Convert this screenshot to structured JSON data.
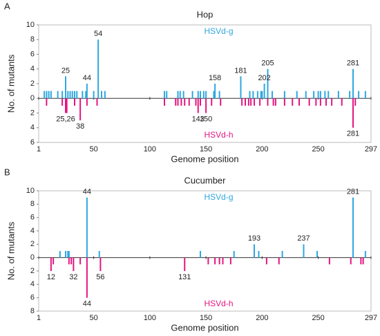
{
  "chart_data": [
    {
      "type": "bar",
      "panel": "A",
      "title": "Hop",
      "x_label": "Genome position",
      "y_label": "No. of mutants",
      "xlim": [
        1,
        297
      ],
      "xticks": [
        1,
        50,
        100,
        150,
        200,
        250,
        297
      ],
      "ylim": [
        -6,
        10
      ],
      "yticks": [
        {
          "value": -6,
          "label": "6"
        },
        {
          "value": -4,
          "label": "4"
        },
        {
          "value": -2,
          "label": "2"
        },
        0,
        2,
        4,
        6,
        8,
        10
      ],
      "series": [
        {
          "name": "HSVd-g",
          "color": "#2ea7e0",
          "x": [
            6,
            8,
            10,
            12,
            18,
            22,
            25,
            27,
            29,
            31,
            33,
            35,
            40,
            43,
            44,
            50,
            54,
            57,
            60,
            113,
            115,
            125,
            127,
            130,
            138,
            143,
            145,
            148,
            150,
            157,
            158,
            162,
            181,
            189,
            192,
            196,
            199,
            200,
            202,
            205,
            209,
            220,
            231,
            239,
            246,
            250,
            252,
            256,
            259,
            268,
            278,
            281,
            286,
            292
          ],
          "values": [
            1,
            1,
            1,
            1,
            1,
            1,
            3,
            1,
            1,
            1,
            1,
            1,
            1,
            1,
            2,
            1,
            8,
            1,
            1,
            1,
            1,
            1,
            1,
            1,
            1,
            1,
            1,
            1,
            1,
            1,
            2,
            1,
            3,
            1,
            1,
            1,
            1,
            1,
            2,
            4,
            1,
            1,
            1,
            1,
            1,
            1,
            1,
            1,
            1,
            1,
            1,
            4,
            1,
            1
          ]
        },
        {
          "name": "HSVd-h",
          "color": "#e4157f",
          "x": [
            8,
            22,
            25,
            26,
            33,
            38,
            44,
            53,
            113,
            123,
            125,
            128,
            131,
            135,
            141,
            143,
            145,
            150,
            155,
            163,
            182,
            185,
            188,
            190,
            193,
            198,
            205,
            210,
            212,
            220,
            227,
            233,
            242,
            248,
            252,
            257,
            262,
            271,
            281,
            283
          ],
          "values": [
            -1,
            -1,
            -2,
            -2,
            -1,
            -3,
            -1,
            -1,
            -1,
            -1,
            -1,
            -1,
            -1,
            -1,
            -1,
            -2,
            -1,
            -2,
            -1,
            -1,
            -1,
            -1,
            -1,
            -1,
            -1,
            -1,
            -1,
            -1,
            -1,
            -1,
            -1,
            -1,
            -1,
            -1,
            -1,
            -1,
            -1,
            -1,
            -4,
            -1
          ]
        }
      ],
      "annotations": [
        {
          "text": "54",
          "x": 54,
          "y": 8
        },
        {
          "text": "25",
          "x": 25,
          "y": 3
        },
        {
          "text": "44",
          "x": 44,
          "y": 2
        },
        {
          "text": "158",
          "x": 158,
          "y": 2
        },
        {
          "text": "181",
          "x": 181,
          "y": 3
        },
        {
          "text": "202",
          "x": 202,
          "y": 2
        },
        {
          "text": "205",
          "x": 205,
          "y": 4
        },
        {
          "text": "281",
          "x": 281,
          "y": 4
        },
        {
          "text": "25,26",
          "x": 25,
          "y": -2
        },
        {
          "text": "38",
          "x": 38,
          "y": -3
        },
        {
          "text": "143",
          "x": 143,
          "y": -2
        },
        {
          "text": "150",
          "x": 150,
          "y": -2
        },
        {
          "text": "281",
          "x": 281,
          "y": -4
        }
      ]
    },
    {
      "type": "bar",
      "panel": "B",
      "title": "Cucumber",
      "x_label": "Genome position",
      "y_label": "No. of mutants",
      "xlim": [
        1,
        297
      ],
      "xticks": [
        1,
        50,
        100,
        150,
        200,
        250,
        297
      ],
      "ylim": [
        -8,
        10
      ],
      "yticks": [
        {
          "value": -8,
          "label": "8"
        },
        {
          "value": -6,
          "label": "6"
        },
        {
          "value": -4,
          "label": "4"
        },
        {
          "value": -2,
          "label": "2"
        },
        0,
        2,
        4,
        6,
        8,
        10
      ],
      "series": [
        {
          "name": "HSVd-g",
          "color": "#2ea7e0",
          "x": [
            20,
            25,
            27,
            28,
            44,
            55,
            145,
            175,
            193,
            197,
            218,
            237,
            249,
            281,
            292
          ],
          "values": [
            1,
            1,
            1,
            1,
            9,
            1,
            1,
            1,
            2,
            1,
            1,
            2,
            1,
            9,
            1
          ]
        },
        {
          "name": "HSVd-h",
          "color": "#e4157f",
          "x": [
            12,
            14,
            28,
            30,
            32,
            38,
            44,
            56,
            131,
            152,
            158,
            162,
            165,
            172,
            204,
            215,
            260,
            279,
            288,
            290
          ],
          "values": [
            -2,
            -1,
            -1,
            -1,
            -2,
            -1,
            -6,
            -2,
            -2,
            -1,
            -1,
            -1,
            -1,
            -1,
            -1,
            -1,
            -1,
            -1,
            -1,
            -1
          ]
        }
      ],
      "annotations": [
        {
          "text": "44",
          "x": 44,
          "y": 9
        },
        {
          "text": "281",
          "x": 281,
          "y": 9
        },
        {
          "text": "193",
          "x": 193,
          "y": 2
        },
        {
          "text": "237",
          "x": 237,
          "y": 2
        },
        {
          "text": "12",
          "x": 12,
          "y": -2
        },
        {
          "text": "32",
          "x": 32,
          "y": -2
        },
        {
          "text": "56",
          "x": 56,
          "y": -2
        },
        {
          "text": "131",
          "x": 131,
          "y": -2
        },
        {
          "text": "44",
          "x": 44,
          "y": -6
        }
      ]
    }
  ]
}
